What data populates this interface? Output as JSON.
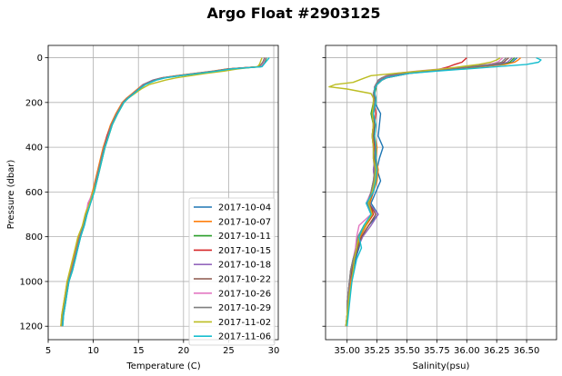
{
  "figure": {
    "title": "Argo Float #2903125",
    "ylabel": "Pressure (dbar)"
  },
  "chart_data": [
    {
      "type": "line",
      "xlabel": "Temperature (C)",
      "ylabel": "Pressure (dbar)",
      "xlim": [
        5,
        30.5
      ],
      "ylim": [
        1260,
        -55
      ],
      "y_inverted": true,
      "grid": true,
      "legend_position": "lower-right",
      "x_ticks": [
        5,
        10,
        15,
        20,
        25,
        30
      ],
      "y_ticks": [
        0,
        200,
        400,
        600,
        800,
        1000,
        1200
      ],
      "pressure": [
        0,
        10,
        20,
        30,
        40,
        50,
        60,
        70,
        80,
        90,
        100,
        120,
        140,
        160,
        180,
        200,
        250,
        300,
        350,
        400,
        450,
        500,
        550,
        600,
        650,
        700,
        750,
        800,
        850,
        900,
        950,
        1000,
        1050,
        1100,
        1150,
        1200
      ],
      "series": [
        {
          "name": "2017-10-04",
          "color": "#1f77b4",
          "values": [
            29.1,
            29.0,
            28.9,
            28.7,
            28.5,
            25.0,
            23.5,
            21.5,
            19.5,
            17.8,
            16.8,
            15.6,
            15.0,
            14.4,
            13.8,
            13.3,
            12.6,
            12.0,
            11.6,
            11.2,
            10.9,
            10.6,
            10.3,
            10.0,
            9.6,
            9.2,
            8.9,
            8.5,
            8.2,
            7.9,
            7.6,
            7.2,
            7.0,
            6.8,
            6.6,
            6.5
          ]
        },
        {
          "name": "2017-10-07",
          "color": "#ff7f0e",
          "values": [
            29.0,
            28.9,
            28.8,
            28.6,
            28.3,
            24.8,
            23.2,
            21.2,
            19.2,
            17.6,
            16.7,
            15.5,
            14.9,
            14.3,
            13.7,
            13.2,
            12.5,
            11.9,
            11.5,
            11.1,
            10.8,
            10.5,
            10.2,
            9.9,
            9.5,
            9.1,
            8.8,
            8.4,
            8.1,
            7.8,
            7.5,
            7.1,
            6.9,
            6.7,
            6.5,
            6.4
          ]
        },
        {
          "name": "2017-10-11",
          "color": "#2ca02c",
          "values": [
            29.2,
            29.1,
            29.0,
            28.8,
            28.6,
            25.2,
            23.6,
            21.6,
            19.6,
            17.9,
            16.9,
            15.7,
            15.1,
            14.5,
            13.9,
            13.4,
            12.7,
            12.1,
            11.7,
            11.3,
            11.0,
            10.7,
            10.4,
            10.1,
            9.7,
            9.3,
            9.0,
            8.6,
            8.3,
            8.0,
            7.7,
            7.3,
            7.1,
            6.9,
            6.7,
            6.6
          ]
        },
        {
          "name": "2017-10-15",
          "color": "#d62728",
          "values": [
            29.0,
            28.9,
            28.8,
            28.6,
            28.4,
            24.9,
            23.4,
            21.4,
            19.4,
            17.7,
            16.8,
            15.6,
            15.0,
            14.4,
            13.8,
            13.3,
            12.6,
            12.0,
            11.5,
            11.2,
            10.9,
            10.6,
            10.3,
            10.0,
            9.6,
            9.2,
            8.9,
            8.5,
            8.2,
            7.9,
            7.6,
            7.2,
            7.0,
            6.8,
            6.6,
            6.5
          ]
        },
        {
          "name": "2017-10-18",
          "color": "#9467bd",
          "values": [
            29.1,
            29.0,
            28.9,
            28.7,
            28.5,
            25.1,
            23.5,
            21.5,
            19.5,
            17.6,
            16.6,
            15.5,
            15.0,
            14.4,
            13.8,
            13.3,
            12.6,
            12.0,
            11.6,
            11.2,
            10.9,
            10.6,
            10.3,
            10.0,
            9.6,
            9.2,
            8.9,
            8.5,
            8.2,
            7.9,
            7.6,
            7.2,
            7.0,
            6.8,
            6.6,
            6.5
          ]
        },
        {
          "name": "2017-10-22",
          "color": "#8c564b",
          "values": [
            29.0,
            28.9,
            28.8,
            28.6,
            28.4,
            25.0,
            23.4,
            21.4,
            19.4,
            17.7,
            16.7,
            15.6,
            15.0,
            14.4,
            13.8,
            13.3,
            12.6,
            12.0,
            11.6,
            11.2,
            10.9,
            10.6,
            10.3,
            10.0,
            9.6,
            9.2,
            8.9,
            8.5,
            8.2,
            7.9,
            7.6,
            7.2,
            7.0,
            6.8,
            6.6,
            6.5
          ]
        },
        {
          "name": "2017-10-26",
          "color": "#e377c2",
          "values": [
            29.1,
            29.0,
            28.9,
            28.7,
            28.5,
            25.1,
            23.5,
            21.5,
            19.5,
            17.8,
            16.8,
            15.6,
            15.0,
            14.4,
            13.8,
            13.3,
            12.6,
            12.0,
            11.6,
            11.2,
            10.9,
            10.6,
            10.3,
            10.0,
            9.4,
            9.2,
            8.8,
            8.5,
            8.2,
            7.9,
            7.6,
            7.2,
            7.0,
            6.8,
            6.6,
            6.5
          ]
        },
        {
          "name": "2017-10-29",
          "color": "#7f7f7f",
          "values": [
            29.0,
            28.9,
            28.8,
            28.6,
            28.4,
            25.0,
            23.4,
            21.4,
            19.4,
            17.7,
            16.7,
            15.6,
            15.0,
            14.4,
            13.8,
            13.3,
            12.6,
            12.0,
            11.6,
            11.2,
            10.9,
            10.6,
            10.3,
            10.0,
            9.6,
            9.2,
            8.9,
            8.5,
            8.2,
            7.9,
            7.6,
            7.2,
            7.0,
            6.8,
            6.6,
            6.5
          ]
        },
        {
          "name": "2017-11-02",
          "color": "#bcbd22",
          "values": [
            28.7,
            28.6,
            28.5,
            28.4,
            28.2,
            26.0,
            24.5,
            22.5,
            20.8,
            19.2,
            18.0,
            16.2,
            15.3,
            14.6,
            13.9,
            13.4,
            12.7,
            12.1,
            11.7,
            11.3,
            11.0,
            10.7,
            10.4,
            10.0,
            9.6,
            9.1,
            8.8,
            8.3,
            8.0,
            7.7,
            7.4,
            7.1,
            6.9,
            6.7,
            6.5,
            6.4
          ]
        },
        {
          "name": "2017-11-06",
          "color": "#17becf",
          "values": [
            29.5,
            29.3,
            29.1,
            28.9,
            28.7,
            25.3,
            23.7,
            21.7,
            19.7,
            18.0,
            17.0,
            15.8,
            15.1,
            14.5,
            13.9,
            13.4,
            12.7,
            12.1,
            11.7,
            11.3,
            11.0,
            10.7,
            10.4,
            10.1,
            9.7,
            9.3,
            9.0,
            8.6,
            8.3,
            8.0,
            7.7,
            7.3,
            7.1,
            6.9,
            6.7,
            6.6
          ]
        }
      ]
    },
    {
      "type": "line",
      "xlabel": "Salinity(psu)",
      "xlim": [
        34.82,
        36.75
      ],
      "ylim": [
        1260,
        -55
      ],
      "y_inverted": true,
      "shares_y_axis": true,
      "grid": true,
      "x_ticks": [
        35.0,
        35.25,
        35.5,
        35.75,
        36.0,
        36.25,
        36.5
      ],
      "x_tick_labels": [
        "35.00",
        "35.25",
        "35.50",
        "35.75",
        "36.00",
        "36.25",
        "36.50"
      ],
      "y_ticks": [
        0,
        200,
        400,
        600,
        800,
        1000,
        1200
      ],
      "pressure": [
        0,
        10,
        20,
        30,
        40,
        50,
        60,
        70,
        80,
        90,
        100,
        110,
        120,
        130,
        140,
        160,
        180,
        200,
        250,
        300,
        350,
        400,
        450,
        500,
        550,
        600,
        650,
        700,
        750,
        800,
        850,
        900,
        950,
        1000,
        1050,
        1100,
        1150,
        1200
      ],
      "series": [
        {
          "name": "2017-10-04",
          "color": "#1f77b4",
          "values": [
            36.42,
            36.4,
            36.38,
            36.3,
            36.1,
            35.9,
            35.7,
            35.5,
            35.4,
            35.32,
            35.28,
            35.26,
            35.25,
            35.24,
            35.23,
            35.22,
            35.22,
            35.23,
            35.28,
            35.27,
            35.26,
            35.3,
            35.27,
            35.25,
            35.28,
            35.24,
            35.2,
            35.26,
            35.18,
            35.12,
            35.1,
            35.07,
            35.05,
            35.03,
            35.02,
            35.01,
            35.0,
            35.0
          ]
        },
        {
          "name": "2017-10-07",
          "color": "#ff7f0e",
          "values": [
            36.45,
            36.43,
            36.4,
            36.32,
            36.12,
            35.92,
            35.72,
            35.52,
            35.42,
            35.33,
            35.29,
            35.27,
            35.25,
            35.24,
            35.23,
            35.23,
            35.24,
            35.24,
            35.22,
            35.24,
            35.23,
            35.25,
            35.24,
            35.26,
            35.25,
            35.22,
            35.19,
            35.22,
            35.16,
            35.11,
            35.09,
            35.06,
            35.04,
            35.03,
            35.02,
            35.01,
            35.0,
            35.0
          ]
        },
        {
          "name": "2017-10-11",
          "color": "#2ca02c",
          "values": [
            36.4,
            36.38,
            36.36,
            36.28,
            36.08,
            35.88,
            35.68,
            35.48,
            35.38,
            35.31,
            35.27,
            35.26,
            35.25,
            35.24,
            35.24,
            35.23,
            35.23,
            35.22,
            35.2,
            35.22,
            35.21,
            35.23,
            35.22,
            35.24,
            35.22,
            35.2,
            35.17,
            35.2,
            35.15,
            35.1,
            35.08,
            35.05,
            35.03,
            35.02,
            35.01,
            35.0,
            35.0,
            34.99
          ]
        },
        {
          "name": "2017-10-15",
          "color": "#d62728",
          "values": [
            36.0,
            35.98,
            35.96,
            35.9,
            35.85,
            35.78,
            35.68,
            35.52,
            35.42,
            35.33,
            35.29,
            35.27,
            35.25,
            35.24,
            35.23,
            35.23,
            35.24,
            35.23,
            35.24,
            35.23,
            35.22,
            35.23,
            35.24,
            35.22,
            35.23,
            35.21,
            35.18,
            35.22,
            35.15,
            35.1,
            35.08,
            35.06,
            35.04,
            35.02,
            35.01,
            35.0,
            35.0,
            34.99
          ]
        },
        {
          "name": "2017-10-18",
          "color": "#9467bd",
          "values": [
            36.38,
            36.36,
            36.34,
            36.26,
            36.06,
            35.86,
            35.66,
            35.46,
            35.36,
            35.3,
            35.27,
            35.25,
            35.24,
            35.23,
            35.23,
            35.22,
            35.22,
            35.23,
            35.21,
            35.22,
            35.21,
            35.22,
            35.23,
            35.22,
            35.23,
            35.21,
            35.18,
            35.26,
            35.2,
            35.13,
            35.09,
            35.06,
            35.04,
            35.02,
            35.01,
            35.0,
            35.0,
            34.99
          ]
        },
        {
          "name": "2017-10-22",
          "color": "#8c564b",
          "values": [
            36.35,
            36.33,
            36.31,
            36.23,
            36.03,
            35.83,
            35.63,
            35.43,
            35.33,
            35.29,
            35.26,
            35.25,
            35.24,
            35.23,
            35.23,
            35.22,
            35.23,
            35.23,
            35.22,
            35.23,
            35.22,
            35.24,
            35.23,
            35.25,
            35.24,
            35.22,
            35.18,
            35.24,
            35.18,
            35.12,
            35.09,
            35.06,
            35.04,
            35.02,
            35.01,
            35.0,
            35.0,
            34.99
          ]
        },
        {
          "name": "2017-10-26",
          "color": "#e377c2",
          "values": [
            36.3,
            36.28,
            36.26,
            36.18,
            35.98,
            35.78,
            35.58,
            35.4,
            35.33,
            35.29,
            35.26,
            35.25,
            35.24,
            35.23,
            35.23,
            35.22,
            35.22,
            35.23,
            35.21,
            35.22,
            35.21,
            35.22,
            35.22,
            35.23,
            35.22,
            35.2,
            35.16,
            35.2,
            35.1,
            35.08,
            35.07,
            35.05,
            35.03,
            35.02,
            35.01,
            35.0,
            35.0,
            34.99
          ]
        },
        {
          "name": "2017-10-29",
          "color": "#7f7f7f",
          "values": [
            36.33,
            36.31,
            36.29,
            36.21,
            36.01,
            35.81,
            35.61,
            35.42,
            35.34,
            35.29,
            35.26,
            35.25,
            35.24,
            35.23,
            35.23,
            35.22,
            35.22,
            35.23,
            35.21,
            35.22,
            35.21,
            35.22,
            35.22,
            35.23,
            35.22,
            35.2,
            35.17,
            35.21,
            35.14,
            35.09,
            35.08,
            35.05,
            35.03,
            35.02,
            35.01,
            35.0,
            35.0,
            34.99
          ]
        },
        {
          "name": "2017-11-02",
          "color": "#bcbd22",
          "values": [
            36.28,
            36.25,
            36.2,
            36.1,
            35.95,
            35.8,
            35.6,
            35.4,
            35.2,
            35.15,
            35.1,
            35.05,
            34.9,
            34.85,
            35.0,
            35.2,
            35.22,
            35.22,
            35.21,
            35.22,
            35.21,
            35.22,
            35.22,
            35.24,
            35.23,
            35.21,
            35.18,
            35.21,
            35.15,
            35.1,
            35.08,
            35.06,
            35.05,
            35.04,
            35.02,
            35.01,
            35.0,
            34.99
          ]
        },
        {
          "name": "2017-11-06",
          "color": "#17becf",
          "values": [
            36.58,
            36.62,
            36.6,
            36.5,
            36.25,
            36.0,
            35.75,
            35.52,
            35.42,
            35.33,
            35.29,
            35.27,
            35.25,
            35.24,
            35.23,
            35.23,
            35.24,
            35.24,
            35.22,
            35.24,
            35.23,
            35.24,
            35.24,
            35.25,
            35.24,
            35.22,
            35.16,
            35.2,
            35.14,
            35.1,
            35.12,
            35.08,
            35.06,
            35.04,
            35.03,
            35.02,
            35.01,
            35.0
          ]
        }
      ]
    }
  ]
}
